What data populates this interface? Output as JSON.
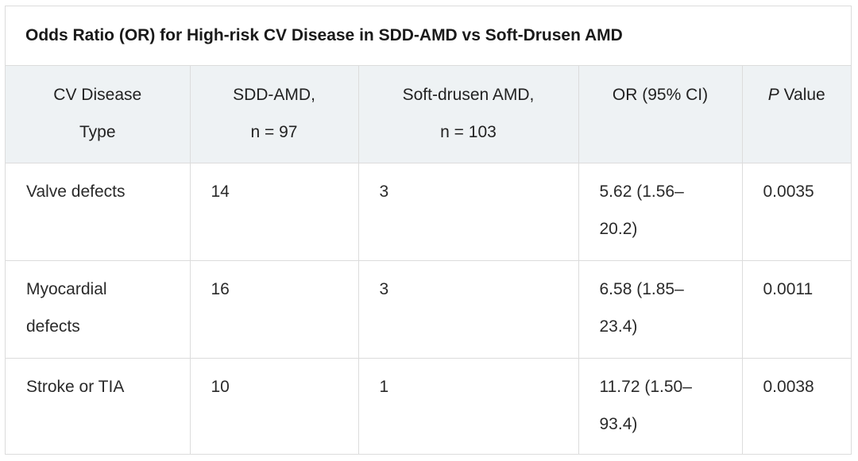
{
  "table": {
    "caption": "Odds Ratio (OR) for High-risk CV Disease in SDD-AMD vs Soft-Drusen AMD",
    "headers": {
      "type_line1": "CV Disease",
      "type_line2": "Type",
      "sdd_line1": "SDD-AMD,",
      "sdd_line2": "n = 97",
      "soft_line1": "Soft-drusen AMD,",
      "soft_line2": "n = 103",
      "or": "OR (95% CI)",
      "p_italic": "P",
      "p_rest": " Value"
    },
    "rows": [
      {
        "type_line1": "Valve defects",
        "type_line2": "",
        "sdd": "14",
        "soft": "3",
        "or_line1": "5.62 (1.56–",
        "or_line2": "20.2)",
        "p": "0.0035"
      },
      {
        "type_line1": "Myocardial",
        "type_line2": "defects",
        "sdd": "16",
        "soft": "3",
        "or_line1": "6.58 (1.85–",
        "or_line2": "23.4)",
        "p": "0.0011"
      },
      {
        "type_line1": "Stroke or TIA",
        "type_line2": "",
        "sdd": "10",
        "soft": "1",
        "or_line1": "11.72 (1.50–",
        "or_line2": "93.4)",
        "p": "0.0038"
      }
    ]
  }
}
